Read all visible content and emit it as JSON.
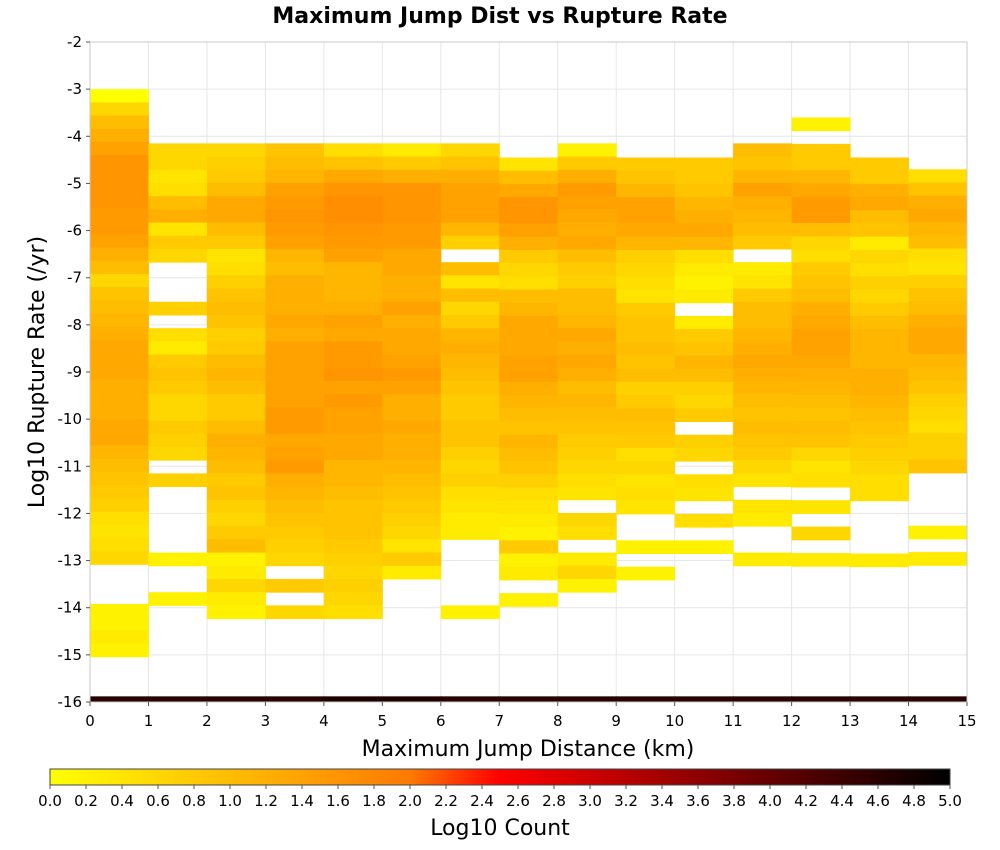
{
  "chart_data": {
    "type": "heatmap",
    "title": "Maximum Jump Dist vs Rupture Rate",
    "xlabel": "Maximum Jump Distance (km)",
    "ylabel": "Log10 Rupture Rate (/yr)",
    "colorbar_label": "Log10 Count",
    "x_range": [
      0,
      15
    ],
    "y_range": [
      -16,
      -2
    ],
    "x_ticks": [
      "0",
      "1",
      "2",
      "3",
      "4",
      "5",
      "6",
      "7",
      "8",
      "9",
      "10",
      "11",
      "12",
      "13",
      "14",
      "15"
    ],
    "y_ticks": [
      "-2",
      "-3",
      "-4",
      "-5",
      "-6",
      "-7",
      "-8",
      "-9",
      "-10",
      "-11",
      "-12",
      "-13",
      "-14",
      "-15",
      "-16"
    ],
    "colorbar_range": [
      0,
      5
    ],
    "colorbar_ticks": [
      "0.0",
      "0.2",
      "0.4",
      "0.6",
      "0.8",
      "1.0",
      "1.2",
      "1.4",
      "1.6",
      "1.8",
      "2.0",
      "2.2",
      "2.4",
      "2.6",
      "2.8",
      "3.0",
      "3.2",
      "3.4",
      "3.6",
      "3.8",
      "4.0",
      "4.2",
      "4.4",
      "4.6",
      "4.8",
      "5.0"
    ],
    "colormap": [
      "#ffff00",
      "#ff7a00",
      "#ff0000",
      "#7f0000",
      "#000000"
    ],
    "grid": true,
    "x_bin_width": 1,
    "y_bin_height": 0.28,
    "columns": [
      {
        "x": 0,
        "y_top": -3.0,
        "values": [
          0.0,
          0.6,
          1.0,
          1.2,
          1.4,
          1.6,
          1.6,
          1.6,
          1.6,
          1.5,
          1.5,
          1.4,
          1.2,
          1.0,
          0.6,
          0.9,
          1.0,
          1.1,
          1.2,
          1.3,
          1.3,
          1.3,
          1.2,
          1.2,
          1.2,
          1.3,
          1.3,
          1.1,
          1.0,
          0.9,
          0.8,
          0.7,
          0.5,
          0.4,
          0.5,
          0.6,
          null,
          null,
          null,
          0.2,
          0.2,
          0.3,
          0.2,
          null,
          4.6
        ]
      },
      {
        "x": 1,
        "y_top": -4.15,
        "values": [
          0.6,
          0.6,
          0.4,
          0.5,
          1.0,
          1.2,
          0.4,
          0.8,
          0.6,
          null,
          null,
          null,
          0.7,
          null,
          0.5,
          0.3,
          0.8,
          0.9,
          0.8,
          0.6,
          0.6,
          0.8,
          0.7,
          0.6,
          null,
          0.7,
          null,
          null,
          null,
          null,
          null,
          0.2,
          null,
          null,
          0.2,
          null,
          4.6
        ]
      },
      {
        "x": 2,
        "y_top": -4.15,
        "values": [
          0.6,
          0.7,
          0.8,
          1.0,
          1.3,
          1.3,
          1.0,
          0.8,
          0.4,
          0.5,
          0.7,
          0.9,
          1.0,
          0.9,
          0.7,
          0.8,
          1.0,
          1.1,
          1.0,
          0.8,
          0.8,
          1.0,
          1.2,
          1.1,
          1.0,
          0.8,
          0.9,
          0.7,
          0.6,
          0.8,
          1.0,
          0.2,
          0.3,
          0.6,
          0.3,
          0.2,
          4.6
        ]
      },
      {
        "x": 3,
        "y_top": -4.15,
        "values": [
          0.9,
          1.0,
          1.1,
          1.4,
          1.5,
          1.6,
          1.5,
          1.4,
          1.1,
          1.0,
          1.2,
          1.2,
          1.2,
          1.3,
          1.2,
          1.4,
          1.4,
          1.4,
          1.4,
          1.4,
          1.5,
          1.5,
          1.3,
          1.4,
          1.5,
          1.2,
          1.1,
          1.0,
          0.9,
          0.8,
          0.7,
          0.6,
          null,
          0.8,
          null,
          0.6,
          4.6
        ]
      },
      {
        "x": 4,
        "y_top": -4.15,
        "values": [
          0.5,
          0.9,
          1.3,
          1.6,
          1.7,
          1.7,
          1.6,
          1.5,
          1.4,
          1.1,
          1.1,
          1.1,
          1.2,
          1.4,
          1.3,
          1.5,
          1.5,
          1.6,
          1.4,
          1.5,
          1.4,
          1.4,
          1.3,
          1.3,
          1.1,
          1.1,
          1.0,
          0.9,
          0.9,
          0.9,
          0.8,
          0.7,
          0.6,
          0.7,
          0.6,
          0.5,
          4.7
        ]
      },
      {
        "x": 5,
        "y_top": -4.15,
        "values": [
          0.3,
          0.8,
          1.2,
          1.6,
          1.6,
          1.6,
          1.5,
          1.5,
          1.3,
          1.3,
          1.2,
          1.2,
          1.4,
          1.2,
          1.3,
          1.3,
          1.4,
          1.5,
          1.4,
          1.2,
          1.2,
          1.3,
          1.2,
          1.2,
          1.1,
          1.0,
          0.9,
          0.8,
          0.7,
          0.6,
          0.4,
          0.8,
          0.3,
          null,
          null,
          null,
          4.7
        ]
      },
      {
        "x": 6,
        "y_top": -4.15,
        "values": [
          0.6,
          0.9,
          1.2,
          1.4,
          1.4,
          1.4,
          1.1,
          0.7,
          null,
          1.0,
          0.4,
          1.0,
          0.6,
          0.8,
          1.1,
          1.2,
          1.1,
          1.0,
          0.9,
          0.8,
          0.8,
          0.9,
          0.9,
          0.7,
          0.6,
          0.7,
          0.5,
          0.4,
          0.3,
          0.3,
          null,
          null,
          null,
          null,
          null,
          0.2,
          4.6
        ]
      },
      {
        "x": 7,
        "y_top": -4.45,
        "values": [
          0.4,
          1.0,
          1.3,
          1.6,
          1.6,
          1.4,
          1.2,
          0.8,
          0.6,
          0.5,
          1.0,
          1.1,
          1.3,
          1.3,
          1.3,
          1.4,
          1.4,
          1.2,
          1.1,
          1.0,
          0.9,
          1.1,
          1.0,
          0.9,
          0.7,
          0.5,
          0.4,
          0.3,
          0.2,
          0.8,
          0.2,
          0.3,
          null,
          0.2,
          4.6
        ]
      },
      {
        "x": 8,
        "y_top": -4.15,
        "values": [
          0.2,
          0.8,
          1.2,
          1.5,
          1.4,
          1.3,
          1.2,
          1.3,
          1.0,
          0.8,
          0.7,
          1.0,
          1.0,
          1.1,
          1.3,
          1.2,
          1.3,
          1.2,
          1.0,
          1.1,
          1.0,
          0.9,
          0.8,
          0.7,
          0.6,
          0.5,
          0.4,
          null,
          0.6,
          0.5,
          null,
          0.3,
          0.6,
          0.2,
          4.6
        ]
      },
      {
        "x": 9,
        "y_top": -4.45,
        "values": [
          0.8,
          0.9,
          1.1,
          1.4,
          1.4,
          1.3,
          1.1,
          0.7,
          0.6,
          0.5,
          0.4,
          0.8,
          0.9,
          0.9,
          1.0,
          0.9,
          1.0,
          0.7,
          0.8,
          1.0,
          0.9,
          0.8,
          0.5,
          0.6,
          0.4,
          0.5,
          0.4,
          null,
          null,
          0.2,
          null,
          0.2,
          null,
          null,
          4.6
        ]
      },
      {
        "x": 10,
        "y_top": -4.45,
        "values": [
          0.8,
          0.8,
          0.9,
          1.1,
          1.2,
          1.3,
          1.1,
          0.5,
          0.3,
          0.2,
          0.3,
          null,
          0.3,
          0.8,
          0.9,
          1.1,
          1.0,
          0.7,
          0.6,
          0.8,
          null,
          0.7,
          0.6,
          null,
          0.5,
          0.4,
          null,
          0.5,
          null,
          0.2,
          null,
          null,
          null,
          null,
          4.6
        ]
      },
      {
        "x": 11,
        "y_top": -4.15,
        "values": [
          1.0,
          0.9,
          1.1,
          1.4,
          1.2,
          1.1,
          1.0,
          0.8,
          null,
          0.3,
          0.4,
          0.8,
          1.0,
          1.0,
          1.1,
          1.2,
          1.3,
          1.2,
          1.1,
          1.0,
          0.9,
          1.0,
          0.9,
          0.8,
          0.6,
          0.4,
          null,
          0.4,
          0.3,
          null,
          null,
          0.3,
          null,
          null,
          null,
          4.6
        ]
      },
      {
        "x": 12,
        "y_top": -3.6,
        "values": [
          0.2,
          null,
          0.8,
          0.8,
          1.1,
          1.3,
          1.5,
          1.5,
          1.0,
          0.6,
          0.5,
          0.8,
          0.9,
          1.0,
          1.2,
          1.3,
          1.4,
          1.4,
          1.3,
          1.2,
          1.1,
          1.0,
          0.9,
          1.0,
          0.9,
          0.6,
          0.4,
          0.5,
          null,
          0.4,
          null,
          0.6,
          null,
          0.3,
          null,
          4.6
        ]
      },
      {
        "x": 13,
        "y_top": -4.45,
        "values": [
          0.8,
          0.8,
          1.2,
          1.3,
          1.0,
          0.9,
          0.3,
          0.6,
          0.5,
          0.7,
          0.6,
          0.8,
          1.0,
          1.1,
          1.1,
          1.1,
          1.2,
          1.2,
          1.1,
          1.0,
          0.9,
          0.8,
          0.7,
          0.6,
          0.5,
          0.5,
          null,
          null,
          null,
          null,
          0.3,
          null,
          null,
          4.6
        ]
      },
      {
        "x": 14,
        "y_top": -4.7,
        "values": [
          0.5,
          0.9,
          1.2,
          1.3,
          1.1,
          1.0,
          0.5,
          0.4,
          0.7,
          0.9,
          1.0,
          1.2,
          1.3,
          1.3,
          1.1,
          1.0,
          0.9,
          0.7,
          0.6,
          0.5,
          0.7,
          0.7,
          0.9,
          null,
          null,
          null,
          null,
          0.2,
          null,
          0.3,
          4.6
        ]
      }
    ]
  }
}
